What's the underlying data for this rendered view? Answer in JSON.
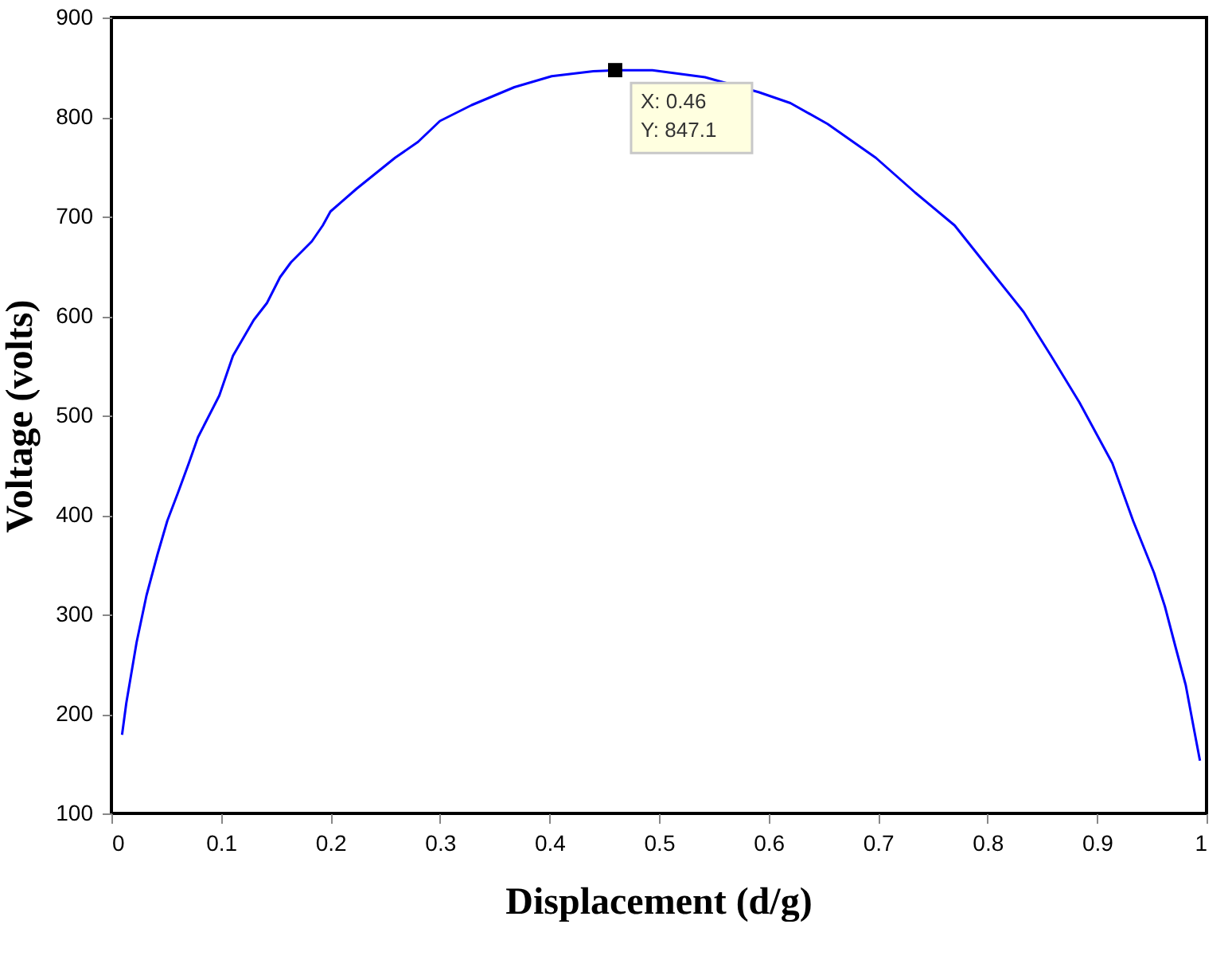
{
  "chart_data": {
    "type": "line",
    "xlabel": "Displacement (d/g)",
    "ylabel": "Voltage (volts)",
    "x": [
      0.0097,
      0.0136,
      0.023,
      0.032,
      0.042,
      0.051,
      0.061,
      0.071,
      0.079,
      0.0985,
      0.111,
      0.13,
      0.142,
      0.154,
      0.164,
      0.183,
      0.193,
      0.2,
      0.224,
      0.259,
      0.28,
      0.3,
      0.329,
      0.368,
      0.402,
      0.44,
      0.46,
      0.494,
      0.542,
      0.591,
      0.62,
      0.654,
      0.698,
      0.734,
      0.77,
      0.804,
      0.833,
      0.858,
      0.884,
      0.914,
      0.933,
      0.952,
      0.962,
      0.972,
      0.981,
      0.989,
      0.994
    ],
    "series": [
      {
        "color": "#0000ff",
        "values": [
          179,
          211,
          272,
          319,
          360,
          394,
          423,
          453,
          478,
          520,
          560,
          596,
          613,
          639,
          654,
          675,
          691,
          705,
          728,
          759,
          775,
          796,
          812,
          830,
          841,
          846,
          847,
          847,
          840,
          825,
          814,
          793,
          759,
          724,
          691,
          644,
          604,
          560,
          513,
          452,
          394,
          342,
          308,
          266,
          229,
          182,
          153
        ]
      }
    ],
    "xlim": [
      0,
      1
    ],
    "ylim": [
      100,
      900
    ],
    "xticks": [
      0,
      0.1,
      0.2,
      0.3,
      0.4,
      0.5,
      0.6,
      0.7,
      0.8,
      0.9,
      1
    ],
    "yticks": [
      100,
      200,
      300,
      400,
      500,
      600,
      700,
      800,
      900
    ],
    "grid": false,
    "marker": "none",
    "line_style": "solid",
    "annotations": [
      {
        "text": "X: 0.46\nY: 847.1",
        "x": 0.46,
        "y": 847.1
      }
    ]
  }
}
